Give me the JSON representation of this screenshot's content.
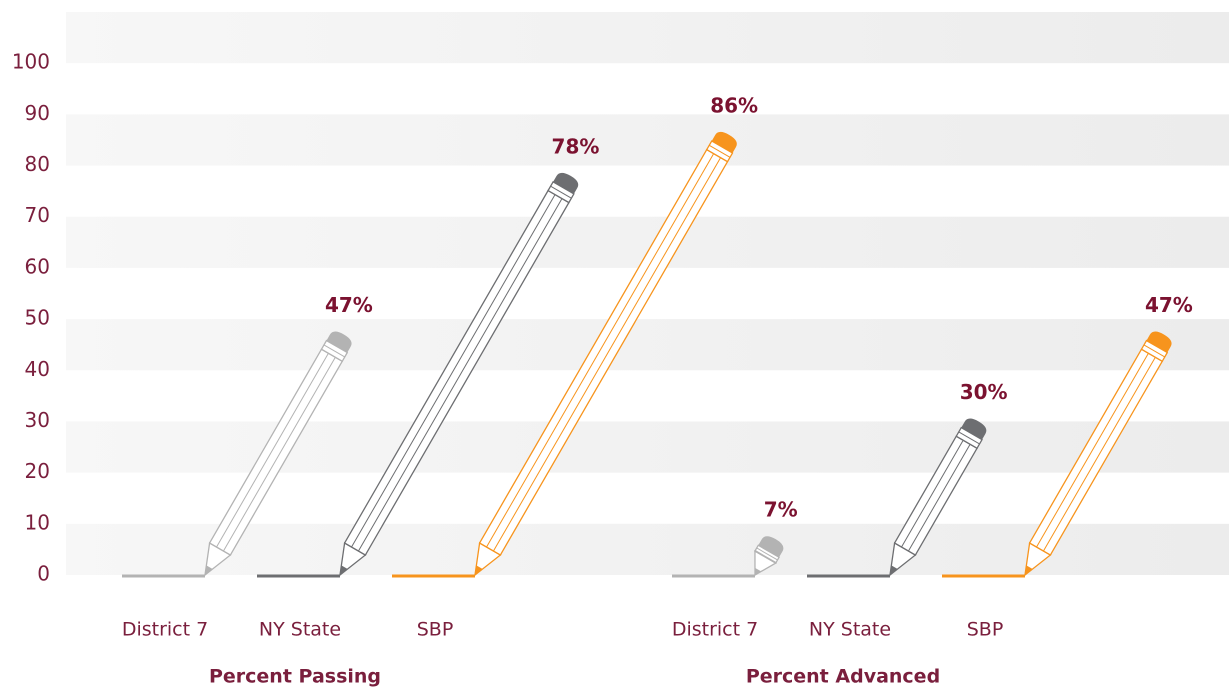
{
  "chart_data": {
    "type": "pencil-bar",
    "categories": [
      "Percent Passing",
      "Percent Advanced"
    ],
    "series": [
      {
        "name": "District 7",
        "color": "#b3b3b3",
        "values": [
          47,
          7
        ],
        "value_labels": [
          "47%",
          "7%"
        ]
      },
      {
        "name": "NY State",
        "color": "#6d6e71",
        "values": [
          78,
          30
        ],
        "value_labels": [
          "78%",
          "30%"
        ]
      },
      {
        "name": "SBP",
        "color": "#f7941d",
        "values": [
          86,
          47
        ],
        "value_labels": [
          "86%",
          "47%"
        ]
      }
    ],
    "ylim": [
      0,
      110
    ],
    "yticks": [
      0,
      10,
      20,
      30,
      40,
      50,
      60,
      70,
      80,
      90,
      100
    ],
    "grid": true
  }
}
